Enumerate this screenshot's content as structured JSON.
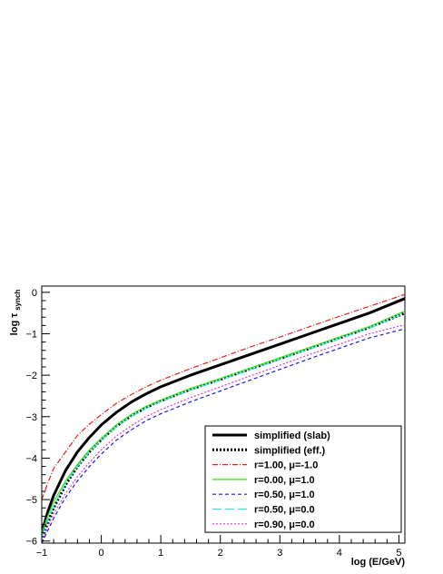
{
  "chart_data": {
    "type": "line",
    "xlabel": "log (E/GeV)",
    "ylabel_main": "log τ",
    "ylabel_sub": "synch",
    "xlim": [
      -1,
      5.1
    ],
    "ylim": [
      -6.05,
      0.15
    ],
    "x_ticks": [
      -1,
      0,
      1,
      2,
      3,
      4,
      5
    ],
    "x_tick_labels": [
      "−1",
      "0",
      "1",
      "2",
      "3",
      "4",
      "5"
    ],
    "y_ticks": [
      -6,
      -5,
      -4,
      -3,
      -2,
      -1,
      0
    ],
    "y_tick_labels": [
      "−6",
      "−5",
      "−4",
      "−3",
      "−2",
      "−1",
      "0"
    ],
    "grid": false,
    "legend_position": "bottom-right",
    "x": [
      -1.0,
      -0.9,
      -0.8,
      -0.6,
      -0.4,
      -0.2,
      0.0,
      0.25,
      0.5,
      0.75,
      1.0,
      1.5,
      2.0,
      2.5,
      3.0,
      3.5,
      4.0,
      4.5,
      5.1
    ],
    "series": [
      {
        "name": "simplified (slab)",
        "color": "#000000",
        "style": "solid",
        "width": 3,
        "values": [
          -5.8,
          -5.3,
          -4.9,
          -4.3,
          -3.85,
          -3.5,
          -3.2,
          -2.9,
          -2.65,
          -2.45,
          -2.28,
          -2.0,
          -1.75,
          -1.5,
          -1.25,
          -1.0,
          -0.75,
          -0.5,
          -0.15
        ]
      },
      {
        "name": "simplified (eff.)",
        "color": "#000000",
        "style": "dotted",
        "width": 3,
        "values": [
          -6.0,
          -5.55,
          -5.2,
          -4.65,
          -4.2,
          -3.85,
          -3.55,
          -3.23,
          -2.98,
          -2.78,
          -2.62,
          -2.34,
          -2.1,
          -1.85,
          -1.6,
          -1.35,
          -1.1,
          -0.85,
          -0.5
        ]
      },
      {
        "name": "r=1.00, μ=-1.0",
        "color": "#e8201a",
        "style": "dashdot",
        "width": 1.2,
        "values": [
          -5.0,
          -4.6,
          -4.25,
          -3.85,
          -3.45,
          -3.18,
          -2.95,
          -2.68,
          -2.47,
          -2.28,
          -2.12,
          -1.84,
          -1.58,
          -1.32,
          -1.08,
          -0.83,
          -0.58,
          -0.34,
          -0.05
        ]
      },
      {
        "name": "r=0.00, μ=1.0",
        "color": "#33e61a",
        "style": "solid",
        "width": 1.2,
        "values": [
          -5.8,
          -5.4,
          -5.05,
          -4.55,
          -4.15,
          -3.8,
          -3.52,
          -3.2,
          -2.95,
          -2.75,
          -2.6,
          -2.32,
          -2.08,
          -1.83,
          -1.58,
          -1.33,
          -1.08,
          -0.83,
          -0.45
        ]
      },
      {
        "name": "r=0.50, μ=1.0",
        "color": "#1a1ae6",
        "style": "dashed",
        "width": 1.2,
        "values": [
          -6.05,
          -5.75,
          -5.45,
          -4.95,
          -4.55,
          -4.2,
          -3.9,
          -3.57,
          -3.32,
          -3.1,
          -2.93,
          -2.64,
          -2.38,
          -2.12,
          -1.86,
          -1.6,
          -1.35,
          -1.1,
          -0.88
        ]
      },
      {
        "name": "r=0.50, μ=0.0",
        "color": "#33e6e6",
        "style": "longdash",
        "width": 1.2,
        "values": [
          -5.9,
          -5.5,
          -5.15,
          -4.6,
          -4.2,
          -3.85,
          -3.57,
          -3.25,
          -3.0,
          -2.8,
          -2.64,
          -2.36,
          -2.12,
          -1.87,
          -1.62,
          -1.37,
          -1.12,
          -0.87,
          -0.5
        ]
      },
      {
        "name": "r=0.90, μ=0.0",
        "color": "#e633e6",
        "style": "dotted",
        "width": 1.2,
        "values": [
          -6.0,
          -5.65,
          -5.35,
          -4.85,
          -4.45,
          -4.1,
          -3.8,
          -3.47,
          -3.22,
          -3.0,
          -2.83,
          -2.54,
          -2.28,
          -2.02,
          -1.76,
          -1.5,
          -1.25,
          -1.0,
          -0.78
        ]
      }
    ]
  }
}
